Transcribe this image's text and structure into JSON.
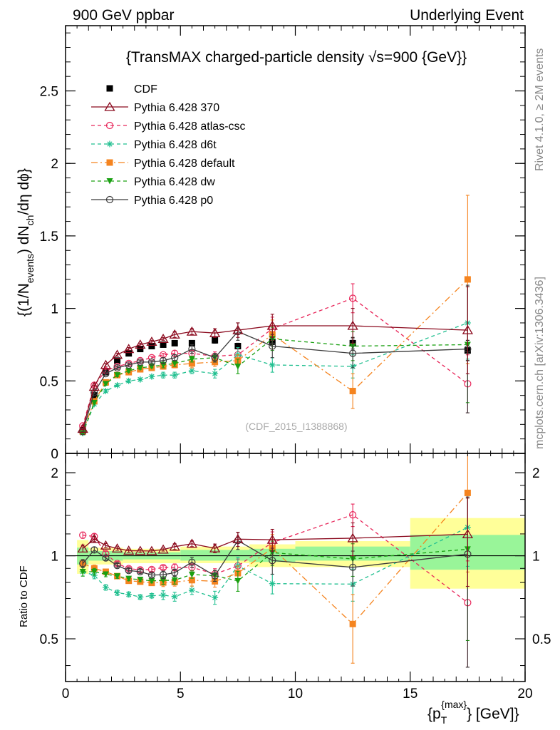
{
  "header": {
    "left": "900 GeV ppbar",
    "right": "Underlying Event"
  },
  "side_text": {
    "rivet": "Rivet 4.1.0, ≥ 2M events",
    "mcplots": "mcplots.cern.ch [arXiv:1306.3436]"
  },
  "watermark": "(CDF_2015_I1388868)",
  "chart_data": [
    {
      "type": "line",
      "title": "{TransMAX charged-particle density √s=900 {GeV}}",
      "ylabel_parts": [
        "{(1/N",
        "events",
        ") dN",
        "ch",
        "/dη  dϕ}"
      ],
      "xlim": [
        0,
        20
      ],
      "ylim": [
        0,
        2.95
      ],
      "yticks": [
        0,
        0.5,
        1,
        1.5,
        2,
        2.5
      ],
      "ytick_labels": [
        "0",
        "0.5",
        "1",
        "1.5",
        "2",
        "2.5"
      ],
      "x": [
        0.75,
        1.25,
        1.75,
        2.25,
        2.75,
        3.25,
        3.75,
        4.25,
        4.75,
        5.5,
        6.5,
        7.5,
        9.0,
        12.5,
        17.5
      ],
      "reference_values": [
        0.16,
        0.4,
        0.56,
        0.64,
        0.69,
        0.72,
        0.74,
        0.75,
        0.76,
        0.76,
        0.78,
        0.74,
        0.77,
        0.76,
        0.71
      ],
      "series": [
        {
          "name": "CDF",
          "color": "#000000",
          "marker": "square-filled",
          "dash": "none",
          "values": [
            0.16,
            0.4,
            0.56,
            0.64,
            0.69,
            0.72,
            0.74,
            0.75,
            0.76,
            0.76,
            0.78,
            0.74,
            0.77,
            0.76,
            0.71
          ],
          "errors": [
            0.005,
            0.01,
            0.01,
            0.01,
            0.01,
            0.01,
            0.01,
            0.01,
            0.01,
            0.01,
            0.02,
            0.02,
            0.03,
            0.04,
            0.07
          ]
        },
        {
          "name": "Pythia 6.428 370",
          "color": "#8b0a1e",
          "marker": "triangle-open",
          "dash": "none",
          "values": [
            0.17,
            0.46,
            0.61,
            0.68,
            0.72,
            0.75,
            0.77,
            0.79,
            0.82,
            0.84,
            0.83,
            0.85,
            0.88,
            0.88,
            0.85
          ],
          "errors": [
            0.005,
            0.01,
            0.01,
            0.01,
            0.01,
            0.01,
            0.01,
            0.01,
            0.02,
            0.02,
            0.03,
            0.05,
            0.08,
            0.12,
            0.3
          ]
        },
        {
          "name": "Pythia 6.428 atlas-csc",
          "color": "#e8265a",
          "marker": "circle-open",
          "dash": "5,4",
          "values": [
            0.19,
            0.47,
            0.57,
            0.6,
            0.62,
            0.64,
            0.66,
            0.68,
            0.69,
            0.69,
            0.67,
            0.68,
            0.86,
            1.07,
            0.48
          ],
          "errors": [
            0.005,
            0.01,
            0.01,
            0.01,
            0.01,
            0.01,
            0.01,
            0.01,
            0.02,
            0.02,
            0.03,
            0.04,
            0.08,
            0.1,
            0.2
          ]
        },
        {
          "name": "Pythia 6.428 d6t",
          "color": "#1fbf8f",
          "marker": "star",
          "dash": "5,4",
          "values": [
            0.14,
            0.34,
            0.43,
            0.47,
            0.5,
            0.51,
            0.53,
            0.54,
            0.54,
            0.57,
            0.55,
            0.68,
            0.61,
            0.6,
            0.9
          ],
          "errors": [
            0.005,
            0.01,
            0.01,
            0.01,
            0.01,
            0.01,
            0.01,
            0.02,
            0.02,
            0.02,
            0.03,
            0.05,
            0.05,
            0.08,
            0.25
          ]
        },
        {
          "name": "Pythia 6.428 default",
          "color": "#f5841f",
          "marker": "square-filled",
          "dash": "9,4,2,4",
          "values": [
            0.15,
            0.36,
            0.49,
            0.54,
            0.56,
            0.58,
            0.59,
            0.6,
            0.61,
            0.62,
            0.63,
            0.64,
            0.82,
            0.43,
            1.2
          ],
          "errors": [
            0.005,
            0.01,
            0.01,
            0.01,
            0.01,
            0.01,
            0.01,
            0.02,
            0.02,
            0.03,
            0.03,
            0.04,
            0.1,
            0.12,
            0.58
          ]
        },
        {
          "name": "Pythia 6.428 dw",
          "color": "#1aa012",
          "marker": "triangle-down-filled",
          "dash": "5,4",
          "values": [
            0.14,
            0.35,
            0.48,
            0.54,
            0.57,
            0.59,
            0.6,
            0.61,
            0.62,
            0.65,
            0.66,
            0.6,
            0.79,
            0.74,
            0.75
          ],
          "errors": [
            0.005,
            0.01,
            0.01,
            0.01,
            0.01,
            0.01,
            0.01,
            0.02,
            0.02,
            0.02,
            0.03,
            0.05,
            0.08,
            0.1,
            0.4
          ]
        },
        {
          "name": "Pythia 6.428 p0",
          "color": "#3a3a3a",
          "marker": "circle-open",
          "dash": "none",
          "values": [
            0.15,
            0.42,
            0.55,
            0.59,
            0.61,
            0.63,
            0.63,
            0.64,
            0.66,
            0.72,
            0.66,
            0.84,
            0.74,
            0.69,
            0.72
          ],
          "errors": [
            0.005,
            0.01,
            0.01,
            0.01,
            0.01,
            0.01,
            0.01,
            0.02,
            0.02,
            0.03,
            0.03,
            0.06,
            0.08,
            0.1,
            0.44
          ]
        }
      ]
    },
    {
      "type": "line",
      "title": "",
      "ylabel": "Ratio to CDF",
      "xlabel_parts": [
        "{p",
        "T",
        "{max}",
        "} [GeV]}"
      ],
      "xlim": [
        0,
        20
      ],
      "ylim": [
        0.35,
        2.35
      ],
      "xticks": [
        0,
        5,
        10,
        15,
        20
      ],
      "xtick_labels": [
        "0",
        "5",
        "10",
        "15",
        "20"
      ],
      "yticks": [
        0.5,
        1,
        2
      ],
      "ytick_labels": [
        "0.5",
        "1",
        "2"
      ],
      "reference_line": 1,
      "band_bins": [
        {
          "x_low": 0.5,
          "x_high": 1.0,
          "inner": [
            0.93,
            1.07
          ],
          "outer": [
            0.86,
            1.14
          ]
        },
        {
          "x_low": 1.0,
          "x_high": 2.5,
          "inner": [
            0.96,
            1.04
          ],
          "outer": [
            0.93,
            1.07
          ]
        },
        {
          "x_low": 2.5,
          "x_high": 5.0,
          "inner": [
            0.97,
            1.03
          ],
          "outer": [
            0.94,
            1.06
          ]
        },
        {
          "x_low": 5.0,
          "x_high": 8.0,
          "inner": [
            0.96,
            1.05
          ],
          "outer": [
            0.94,
            1.08
          ]
        },
        {
          "x_low": 8.0,
          "x_high": 10.0,
          "inner": [
            0.95,
            1.06
          ],
          "outer": [
            0.91,
            1.1
          ]
        },
        {
          "x_low": 10.0,
          "x_high": 15.0,
          "inner": [
            0.96,
            1.08
          ],
          "outer": [
            0.91,
            1.13
          ]
        },
        {
          "x_low": 15.0,
          "x_high": 20.0,
          "inner": [
            0.89,
            1.19
          ],
          "outer": [
            0.76,
            1.37
          ]
        }
      ]
    }
  ]
}
